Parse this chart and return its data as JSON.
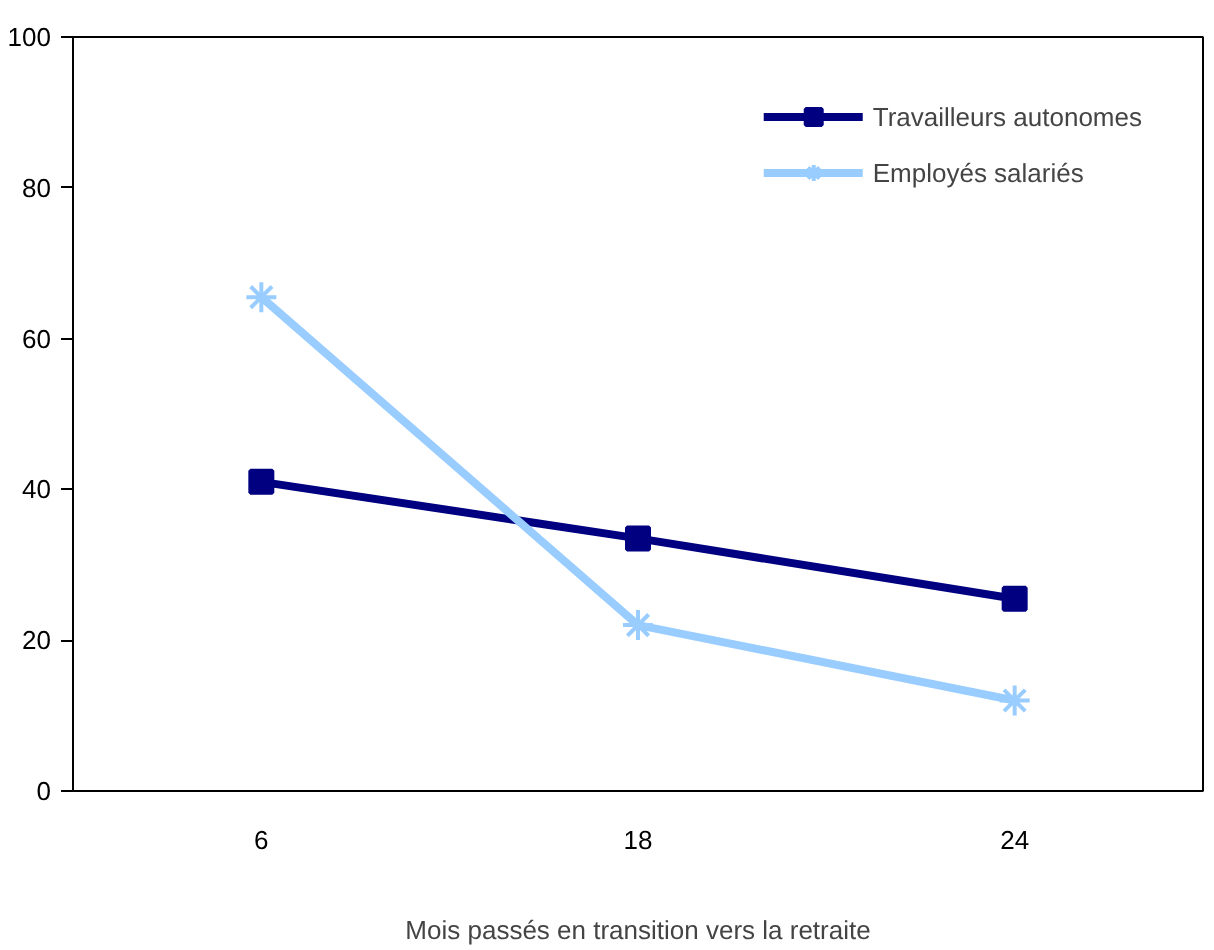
{
  "chart_data": {
    "type": "line",
    "xlabel": "Mois passés en transition vers la retraite",
    "categories": [
      "6",
      "18",
      "24"
    ],
    "series": [
      {
        "name": "Travailleurs autonomes",
        "color": "#000080",
        "marker": "square",
        "values": [
          41,
          33.5,
          25.5
        ]
      },
      {
        "name": "Employés salariés",
        "color": "#99ccff",
        "marker": "cross",
        "values": [
          65.5,
          22,
          12
        ]
      }
    ],
    "ylim": [
      0,
      100
    ],
    "yticks": [
      0,
      20,
      40,
      60,
      80,
      100
    ],
    "grid": false,
    "legend": "top right",
    "line_style": "solid"
  }
}
